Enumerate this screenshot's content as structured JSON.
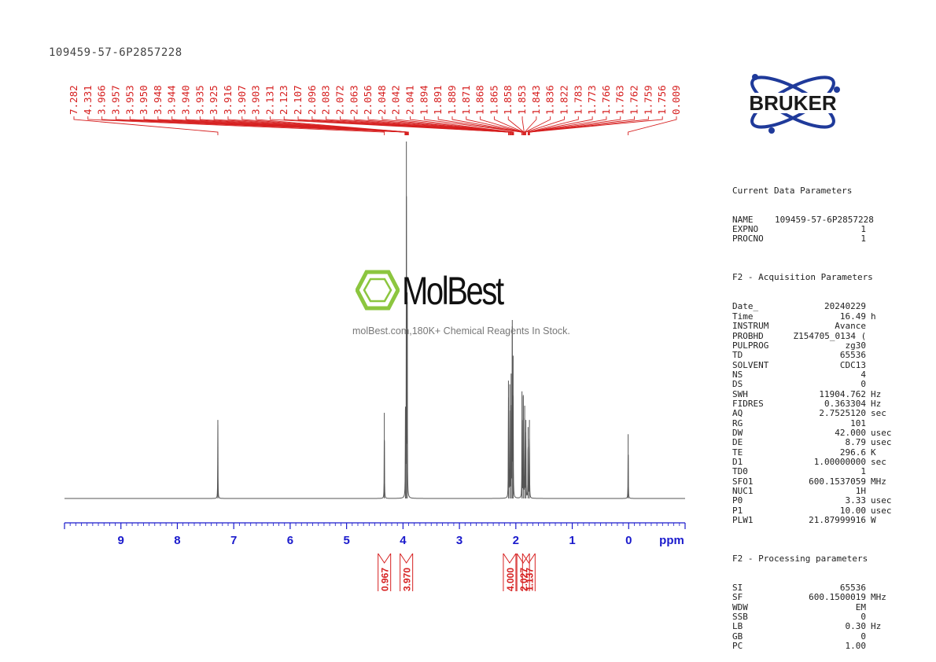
{
  "sample_id": "109459-57-6P2857228",
  "brand": "BRUKER",
  "watermark": {
    "name": "MolBest",
    "tagline": "molBest.com,180K+ Chemical Reagents In Stock."
  },
  "colors": {
    "peak_labels": "#d62020",
    "axis": "#1a1acc",
    "spectrum": "#555555",
    "integral": "#d62020",
    "bruker_blue": "#1f3a9a",
    "watermark_green": "#8cc63f"
  },
  "chart_data": {
    "type": "line",
    "title": "",
    "xlabel": "ppm",
    "ylabel": "",
    "xlim": [
      10,
      -1
    ],
    "x_ticks": [
      9,
      8,
      7,
      6,
      5,
      4,
      3,
      2,
      1,
      0
    ],
    "peaks": [
      {
        "ppm": 7.282,
        "height": 0.22
      },
      {
        "ppm": 4.331,
        "height": 0.24
      },
      {
        "ppm": 3.94,
        "height": 1.0
      },
      {
        "ppm": 3.925,
        "height": 0.55
      },
      {
        "ppm": 3.957,
        "height": 0.25
      },
      {
        "ppm": 2.131,
        "height": 0.33
      },
      {
        "ppm": 2.107,
        "height": 0.32
      },
      {
        "ppm": 2.083,
        "height": 0.35
      },
      {
        "ppm": 2.063,
        "height": 0.5
      },
      {
        "ppm": 2.048,
        "height": 0.4
      },
      {
        "ppm": 1.891,
        "height": 0.3
      },
      {
        "ppm": 1.868,
        "height": 0.29
      },
      {
        "ppm": 1.843,
        "height": 0.26
      },
      {
        "ppm": 1.822,
        "height": 0.22
      },
      {
        "ppm": 1.783,
        "height": 0.2
      },
      {
        "ppm": 1.759,
        "height": 0.22
      },
      {
        "ppm": 0.009,
        "height": 0.18
      }
    ],
    "peak_labels": [
      "7.282",
      "4.331",
      "3.966",
      "3.957",
      "3.953",
      "3.950",
      "3.948",
      "3.944",
      "3.940",
      "3.935",
      "3.925",
      "3.916",
      "3.907",
      "3.903",
      "2.131",
      "2.123",
      "2.107",
      "2.096",
      "2.083",
      "2.072",
      "2.063",
      "2.056",
      "2.048",
      "2.042",
      "2.041",
      "1.894",
      "1.891",
      "1.889",
      "1.871",
      "1.868",
      "1.865",
      "1.858",
      "1.853",
      "1.843",
      "1.836",
      "1.822",
      "1.783",
      "1.773",
      "1.766",
      "1.763",
      "1.762",
      "1.759",
      "1.756",
      "0.009"
    ],
    "integrals": [
      {
        "ppm": 4.33,
        "value": "0.967"
      },
      {
        "ppm": 3.94,
        "value": "3.970"
      },
      {
        "ppm": 2.11,
        "value": "4.000"
      },
      {
        "ppm": 1.87,
        "value": "2.027"
      },
      {
        "ppm": 1.77,
        "value": "1.137"
      }
    ]
  },
  "params": {
    "current": {
      "heading": "Current Data Parameters",
      "rows": [
        {
          "k": "NAME",
          "v": "109459-57-6P2857228",
          "u": ""
        },
        {
          "k": "EXPNO",
          "v": "1",
          "u": ""
        },
        {
          "k": "PROCNO",
          "v": "1",
          "u": ""
        }
      ]
    },
    "acq": {
      "heading": "F2 - Acquisition Parameters",
      "rows": [
        {
          "k": "Date_",
          "v": "20240229",
          "u": ""
        },
        {
          "k": "Time",
          "v": "16.49",
          "u": "h"
        },
        {
          "k": "INSTRUM",
          "v": "Avance",
          "u": ""
        },
        {
          "k": "PROBHD",
          "v": "Z154705_0134 (",
          "u": ""
        },
        {
          "k": "PULPROG",
          "v": "zg30",
          "u": ""
        },
        {
          "k": "TD",
          "v": "65536",
          "u": ""
        },
        {
          "k": "SOLVENT",
          "v": "CDC13",
          "u": ""
        },
        {
          "k": "NS",
          "v": "4",
          "u": ""
        },
        {
          "k": "DS",
          "v": "0",
          "u": ""
        },
        {
          "k": "SWH",
          "v": "11904.762",
          "u": "Hz"
        },
        {
          "k": "FIDRES",
          "v": "0.363304",
          "u": "Hz"
        },
        {
          "k": "AQ",
          "v": "2.7525120",
          "u": "sec"
        },
        {
          "k": "RG",
          "v": "101",
          "u": ""
        },
        {
          "k": "DW",
          "v": "42.000",
          "u": "usec"
        },
        {
          "k": "DE",
          "v": "8.79",
          "u": "usec"
        },
        {
          "k": "TE",
          "v": "296.6",
          "u": "K"
        },
        {
          "k": "D1",
          "v": "1.00000000",
          "u": "sec"
        },
        {
          "k": "TD0",
          "v": "1",
          "u": ""
        },
        {
          "k": "SFO1",
          "v": "600.1537059",
          "u": "MHz"
        },
        {
          "k": "NUC1",
          "v": "1H",
          "u": ""
        },
        {
          "k": "P0",
          "v": "3.33",
          "u": "usec"
        },
        {
          "k": "P1",
          "v": "10.00",
          "u": "usec"
        },
        {
          "k": "PLW1",
          "v": "21.87999916",
          "u": "W"
        }
      ]
    },
    "proc": {
      "heading": "F2 - Processing parameters",
      "rows": [
        {
          "k": "SI",
          "v": "65536",
          "u": ""
        },
        {
          "k": "SF",
          "v": "600.1500019",
          "u": "MHz"
        },
        {
          "k": "WDW",
          "v": "EM",
          "u": ""
        },
        {
          "k": "SSB",
          "v": "0",
          "u": ""
        },
        {
          "k": "LB",
          "v": "0.30",
          "u": "Hz"
        },
        {
          "k": "GB",
          "v": "0",
          "u": ""
        },
        {
          "k": "PC",
          "v": "1.00",
          "u": ""
        }
      ]
    }
  }
}
